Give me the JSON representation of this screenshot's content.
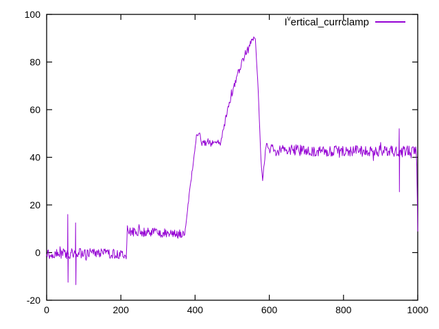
{
  "chart_data": {
    "type": "line",
    "title": "",
    "xlabel": "",
    "ylabel": "",
    "xlim": [
      0,
      1000
    ],
    "ylim": [
      -20,
      100
    ],
    "xticks": [
      0,
      200,
      400,
      600,
      800,
      1000
    ],
    "yticks": [
      -20,
      0,
      20,
      40,
      60,
      80,
      100
    ],
    "grid": false,
    "legend_position": "top-right-inside",
    "background": "#ffffff",
    "border_color": "#000000",
    "legend": {
      "pre": "I",
      "sup": "v",
      "rest": "ertical_currclamp"
    },
    "series": [
      {
        "name": "I^vertical_currclamp",
        "color": "#9400d3",
        "envelope_keypoints": [
          [
            0,
            -0.5
          ],
          [
            215,
            -0.5
          ],
          [
            217.5,
            10.8
          ],
          [
            221,
            8.8
          ],
          [
            300,
            8.3
          ],
          [
            372,
            8.0
          ],
          [
            403,
            48.5
          ],
          [
            410,
            50.5
          ],
          [
            416,
            46.5
          ],
          [
            424,
            45.8
          ],
          [
            468,
            46.0
          ],
          [
            482,
            56.0
          ],
          [
            496,
            65.0
          ],
          [
            510,
            72.5
          ],
          [
            524,
            79.0
          ],
          [
            538,
            84.5
          ],
          [
            550,
            88.0
          ],
          [
            560,
            90.8
          ],
          [
            563,
            89.0
          ],
          [
            570,
            68.0
          ],
          [
            578,
            37.0
          ],
          [
            582,
            31.0
          ],
          [
            587,
            38.0
          ],
          [
            592,
            46.5
          ],
          [
            599,
            44.0
          ],
          [
            610,
            43.0
          ],
          [
            990,
            42.5
          ],
          [
            997,
            42.0
          ],
          [
            1000,
            9.0
          ]
        ],
        "noise_segments": [
          [
            0,
            215,
            2.2
          ],
          [
            215,
            221,
            0.6
          ],
          [
            221,
            372,
            1.9
          ],
          [
            372,
            410,
            1.0
          ],
          [
            410,
            468,
            1.4
          ],
          [
            468,
            560,
            1.4
          ],
          [
            560,
            582,
            0.5
          ],
          [
            582,
            599,
            0.9
          ],
          [
            599,
            997,
            2.4
          ],
          [
            997,
            1000,
            0.3
          ]
        ],
        "spikes": [
          {
            "x": 57,
            "up": 16.0,
            "down": -12.5
          },
          {
            "x": 78,
            "up": 12.5,
            "down": -13.5
          },
          {
            "x": 950,
            "up": 52.0,
            "down": 25.5
          }
        ]
      }
    ]
  }
}
